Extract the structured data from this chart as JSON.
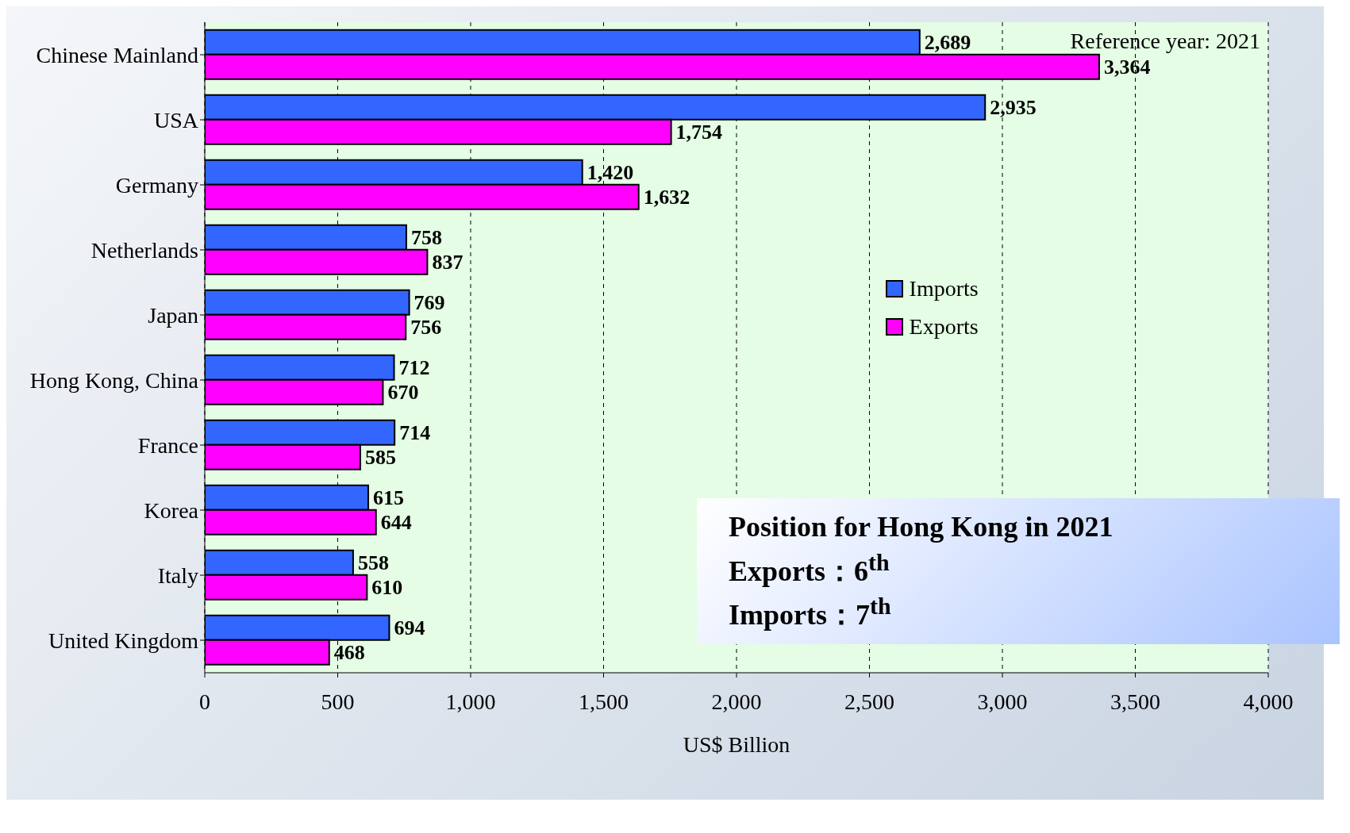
{
  "chart_data": {
    "type": "bar",
    "orientation": "horizontal",
    "xlabel": "US$ Billion",
    "categories": [
      "Chinese Mainland",
      "USA",
      "Germany",
      "Netherlands",
      "Japan",
      "Hong Kong, China",
      "France",
      "Korea",
      "Italy",
      "United Kingdom"
    ],
    "series": [
      {
        "name": "Imports",
        "color": "#3366ff",
        "values": [
          2689,
          2935,
          1420,
          758,
          769,
          712,
          714,
          615,
          558,
          694
        ],
        "value_labels": [
          "2,689",
          "2,935",
          "1,420",
          "758",
          "769",
          "712",
          "714",
          "615",
          "558",
          "694"
        ]
      },
      {
        "name": "Exports",
        "color": "#ff00ff",
        "values": [
          3364,
          1754,
          1632,
          837,
          756,
          670,
          585,
          644,
          610,
          468
        ],
        "value_labels": [
          "3,364",
          "1,754",
          "1,632",
          "837",
          "756",
          "670",
          "585",
          "644",
          "610",
          "468"
        ]
      }
    ],
    "xlim": [
      0,
      4000
    ],
    "xticks": [
      0,
      500,
      {
        "value": 1000,
        "label": "1,000"
      },
      {
        "value": 1500,
        "label": "1,500"
      },
      {
        "value": 2000,
        "label": "2,000"
      },
      {
        "value": 2500,
        "label": "2,500"
      },
      {
        "value": 3000,
        "label": "3,000"
      },
      {
        "value": 3500,
        "label": "3,500"
      },
      {
        "value": 4000,
        "label": "4,000"
      }
    ],
    "grid": "x",
    "legend": "right",
    "annotations": [
      "Reference year: 2021",
      "Position for Hong Kong in 2021",
      "Exports：6$^{th}$",
      "Imports：7$^{th}$"
    ]
  }
}
